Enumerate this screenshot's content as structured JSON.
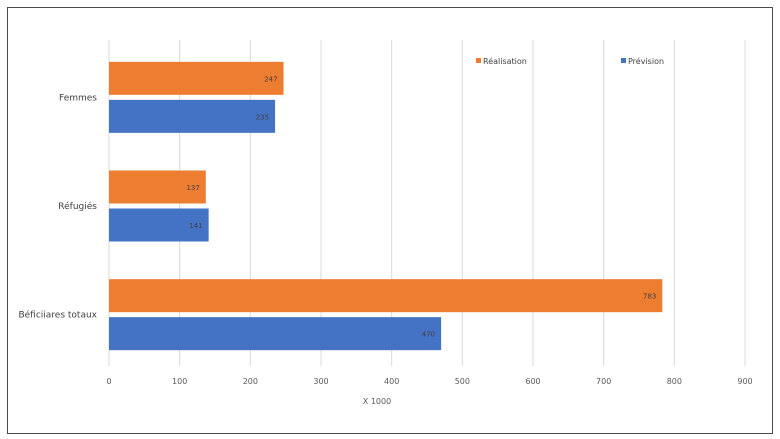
{
  "chart_data": {
    "type": "bar",
    "orientation": "horizontal",
    "categories": [
      "Femmes",
      "Réfugiés",
      "Béficiiares totaux"
    ],
    "series": [
      {
        "name": "Réalisation",
        "values": [
          247,
          137,
          783
        ],
        "color": "#ED7D31"
      },
      {
        "name": "Prévision",
        "values": [
          235,
          141,
          470
        ],
        "color": "#4472C4"
      }
    ],
    "xlabel": "X 1000",
    "ylabel": "",
    "xlim": [
      0,
      900
    ],
    "xticks": [
      0,
      100,
      200,
      300,
      400,
      500,
      600,
      700,
      800,
      900
    ],
    "grid": true,
    "legend_position": "top-right"
  }
}
